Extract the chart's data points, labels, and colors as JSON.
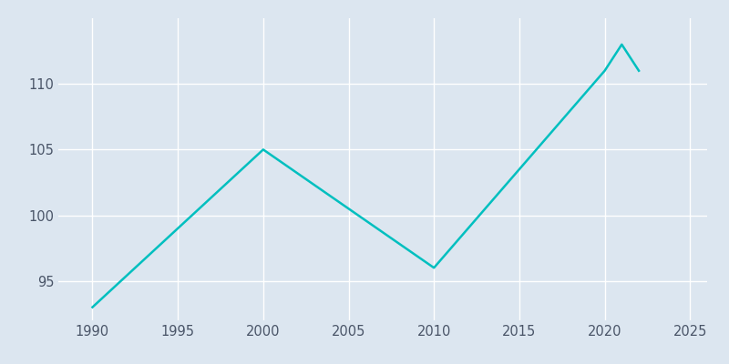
{
  "years": [
    1990,
    2000,
    2010,
    2020,
    2021,
    2022
  ],
  "values": [
    93,
    105,
    96,
    111,
    113,
    111
  ],
  "line_color": "#00BFBF",
  "background_color": "#dce6f0",
  "grid_color": "#ffffff",
  "xlim": [
    1988,
    2026
  ],
  "ylim": [
    92,
    115
  ],
  "xticks": [
    1990,
    1995,
    2000,
    2005,
    2010,
    2015,
    2020,
    2025
  ],
  "yticks": [
    95,
    100,
    105,
    110
  ],
  "line_width": 1.8,
  "tick_label_color": "#4a5568",
  "tick_label_size": 10.5
}
